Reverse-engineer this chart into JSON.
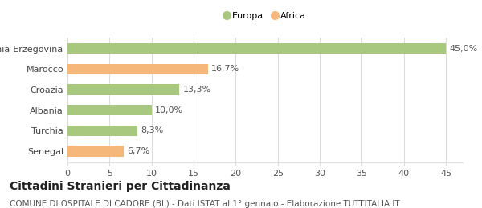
{
  "categories": [
    "Bosnia-Erzegovina",
    "Marocco",
    "Croazia",
    "Albania",
    "Turchia",
    "Senegal"
  ],
  "values": [
    45.0,
    16.7,
    13.3,
    10.0,
    8.3,
    6.7
  ],
  "labels": [
    "45,0%",
    "16,7%",
    "13,3%",
    "10,0%",
    "8,3%",
    "6,7%"
  ],
  "colors": [
    "#a8c880",
    "#f5b87a",
    "#a8c880",
    "#a8c880",
    "#a8c880",
    "#f5b87a"
  ],
  "legend": [
    {
      "label": "Europa",
      "color": "#a8c880"
    },
    {
      "label": "Africa",
      "color": "#f5b87a"
    }
  ],
  "xlim": [
    0,
    47
  ],
  "xticks": [
    0,
    5,
    10,
    15,
    20,
    25,
    30,
    35,
    40,
    45
  ],
  "title": "Cittadini Stranieri per Cittadinanza",
  "subtitle": "COMUNE DI OSPITALE DI CADORE (BL) - Dati ISTAT al 1° gennaio - Elaborazione TUTTITALIA.IT",
  "title_fontsize": 10,
  "subtitle_fontsize": 7.5,
  "label_fontsize": 8,
  "tick_fontsize": 8,
  "bar_height": 0.52,
  "background_color": "#ffffff",
  "grid_color": "#dddddd"
}
